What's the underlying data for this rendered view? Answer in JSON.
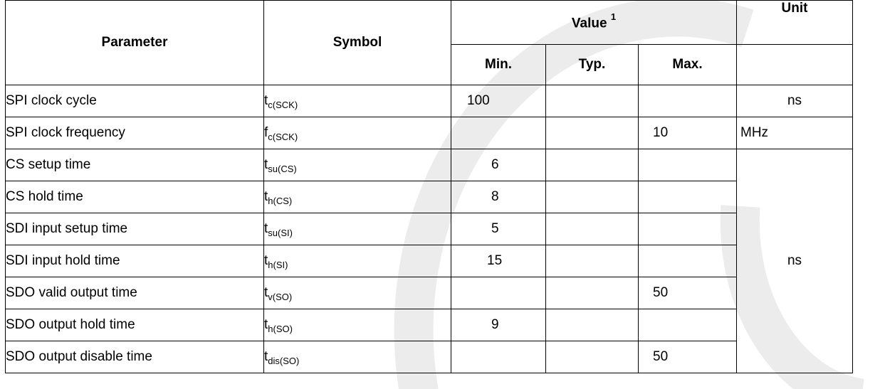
{
  "headers": {
    "parameter": "Parameter",
    "symbol": "Symbol",
    "value": "Value",
    "value_footnote": "1",
    "unit": "Unit",
    "min": "Min.",
    "typ": "Typ.",
    "max": "Max."
  },
  "rows": [
    {
      "parameter": "SPI clock cycle",
      "sym_main": "t",
      "sym_sub": "c(SCK)",
      "min": "100",
      "typ": "",
      "max": "",
      "unit": "ns"
    },
    {
      "parameter": "SPI clock frequency",
      "sym_main": "f",
      "sym_sub": "c(SCK)",
      "min": "",
      "typ": "",
      "max": "10",
      "unit": "MHz"
    },
    {
      "parameter": "CS setup time",
      "sym_main": "t",
      "sym_sub": "su(CS)",
      "min": "6",
      "typ": "",
      "max": ""
    },
    {
      "parameter": "CS hold time",
      "sym_main": "t",
      "sym_sub": "h(CS)",
      "min": "8",
      "typ": "",
      "max": ""
    },
    {
      "parameter": "SDI input setup time",
      "sym_main": "t",
      "sym_sub": "su(SI)",
      "min": "5",
      "typ": "",
      "max": ""
    },
    {
      "parameter": "SDI input hold time",
      "sym_main": "t",
      "sym_sub": "h(SI)",
      "min": "15",
      "typ": "",
      "max": ""
    },
    {
      "parameter": "SDO valid output time",
      "sym_main": "t",
      "sym_sub": "v(SO)",
      "min": "",
      "typ": "",
      "max": "50"
    },
    {
      "parameter": "SDO output hold time",
      "sym_main": "t",
      "sym_sub": "h(SO)",
      "min": "9",
      "typ": "",
      "max": ""
    },
    {
      "parameter": "SDO output disable time",
      "sym_main": "t",
      "sym_sub": "dis(SO)",
      "min": "",
      "typ": "",
      "max": "50"
    }
  ],
  "merged_unit": "ns",
  "watermark_color": "#ececec"
}
